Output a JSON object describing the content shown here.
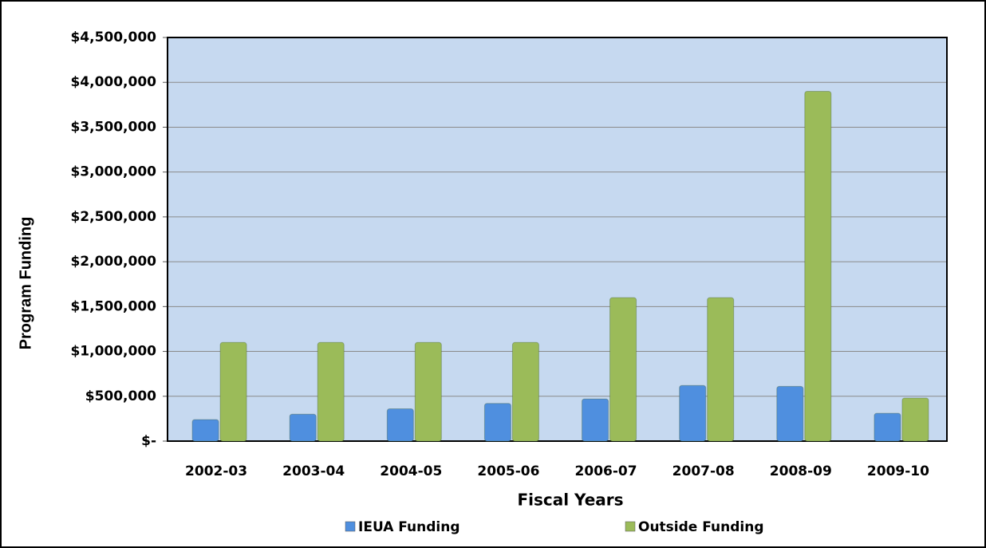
{
  "chart_data": {
    "type": "bar",
    "x_label": "Fiscal Years",
    "y_label": "Program Funding",
    "categories": [
      "2002-03",
      "2003-04",
      "2004-05",
      "2005-06",
      "2006-07",
      "2007-08",
      "2008-09",
      "2009-10"
    ],
    "series": [
      {
        "name": "IEUA Funding",
        "color": "#4f8fdf",
        "values": [
          240000,
          300000,
          360000,
          420000,
          470000,
          620000,
          610000,
          310000
        ]
      },
      {
        "name": "Outside Funding",
        "color": "#9bbb59",
        "values": [
          1100000,
          1100000,
          1100000,
          1100000,
          1600000,
          1600000,
          3900000,
          480000
        ]
      }
    ],
    "ylim": [
      0,
      4500000
    ],
    "yticks": [
      {
        "value": 0,
        "label": "$-"
      },
      {
        "value": 500000,
        "label": "$500,000"
      },
      {
        "value": 1000000,
        "label": "$1,000,000"
      },
      {
        "value": 1500000,
        "label": "$1,500,000"
      },
      {
        "value": 2000000,
        "label": "$2,000,000"
      },
      {
        "value": 2500000,
        "label": "$2,500,000"
      },
      {
        "value": 3000000,
        "label": "$3,000,000"
      },
      {
        "value": 3500000,
        "label": "$3,500,000"
      },
      {
        "value": 4000000,
        "label": "$4,000,000"
      },
      {
        "value": 4500000,
        "label": "$4,500,000"
      }
    ],
    "grid": true,
    "legend": "bottom"
  }
}
